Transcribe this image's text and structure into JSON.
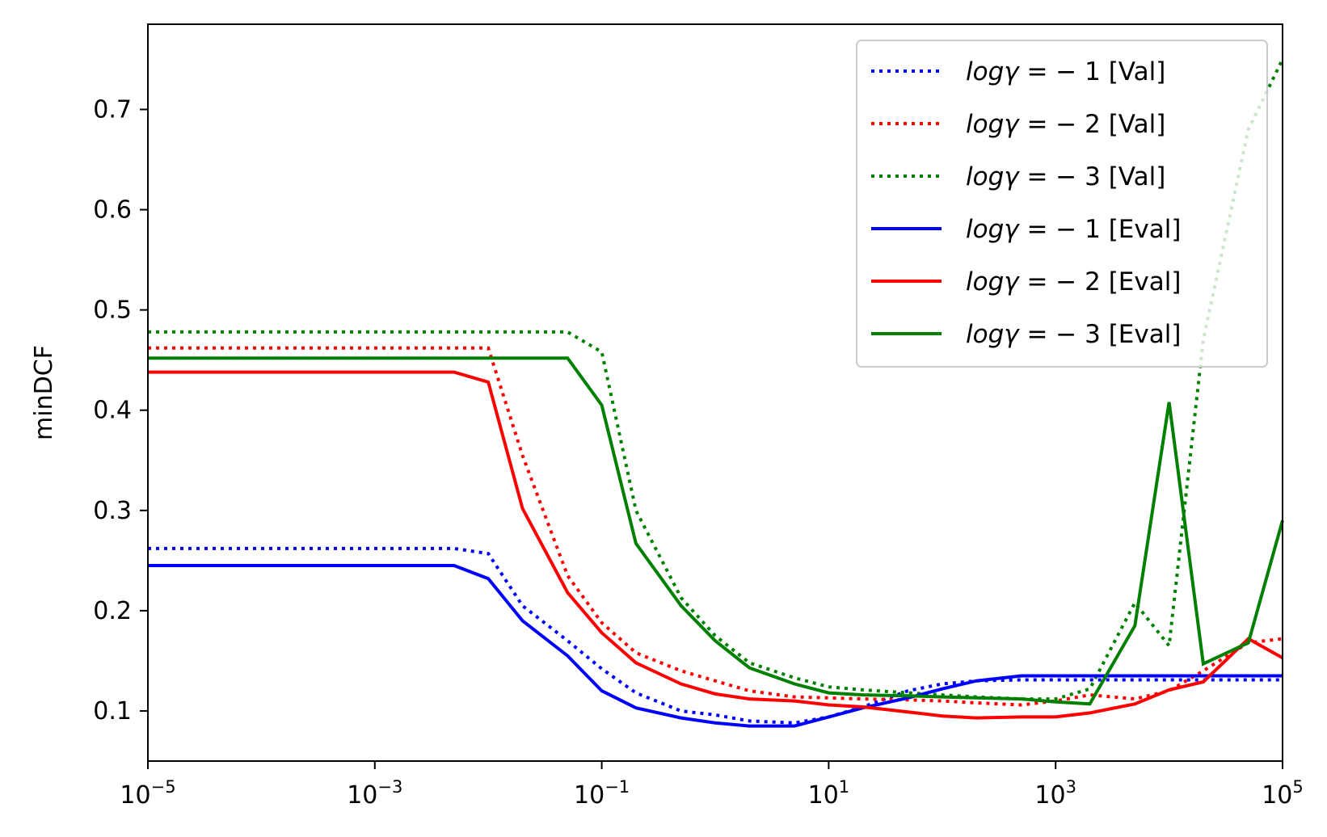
{
  "chart_data": {
    "type": "line",
    "title": "",
    "xlabel": "",
    "ylabel": "minDCF",
    "xscale": "log",
    "xlim_exponent": [
      -5,
      5
    ],
    "ylim": [
      0.05,
      0.785
    ],
    "x_tick_base": "10",
    "x_tick_exponents": [
      "−5",
      "−3",
      "−1",
      "1",
      "3",
      "5"
    ],
    "y_ticks": [
      0.1,
      0.2,
      0.3,
      0.4,
      0.5,
      0.6,
      0.7
    ],
    "y_tick_labels": [
      "0.1",
      "0.2",
      "0.3",
      "0.4",
      "0.5",
      "0.6",
      "0.7"
    ],
    "grid": false,
    "legend_position": "top-right",
    "x_exponents": [
      -5,
      -4.301,
      -4,
      -3.301,
      -3,
      -2.301,
      -2,
      -1.699,
      -1.301,
      -1,
      -0.699,
      -0.301,
      0,
      0.301,
      0.699,
      1,
      1.301,
      1.699,
      2,
      2.301,
      2.699,
      3,
      3.301,
      3.699,
      4,
      4.301,
      4.699,
      5
    ],
    "series": [
      {
        "label_prefix": "logγ",
        "label_suffix": " = − 1 [Val]",
        "color": "#0000ff",
        "style": "dotted",
        "values": [
          0.262,
          0.262,
          0.262,
          0.262,
          0.262,
          0.262,
          0.257,
          0.205,
          0.17,
          0.142,
          0.118,
          0.1,
          0.096,
          0.09,
          0.088,
          0.094,
          0.104,
          0.12,
          0.127,
          0.13,
          0.131,
          0.131,
          0.131,
          0.131,
          0.131,
          0.131,
          0.131,
          0.131
        ]
      },
      {
        "label_prefix": "logγ",
        "label_suffix": " = − 2 [Val]",
        "color": "#ff0000",
        "style": "dotted",
        "values": [
          0.462,
          0.462,
          0.462,
          0.462,
          0.462,
          0.462,
          0.462,
          0.355,
          0.235,
          0.188,
          0.158,
          0.14,
          0.13,
          0.12,
          0.114,
          0.113,
          0.112,
          0.111,
          0.11,
          0.108,
          0.106,
          0.11,
          0.116,
          0.112,
          0.12,
          0.14,
          0.168,
          0.172
        ]
      },
      {
        "label_prefix": "logγ",
        "label_suffix": " = − 3 [Val]",
        "color": "#008000",
        "style": "dotted",
        "values": [
          0.478,
          0.478,
          0.478,
          0.478,
          0.478,
          0.478,
          0.478,
          0.478,
          0.478,
          0.458,
          0.3,
          0.213,
          0.175,
          0.148,
          0.133,
          0.124,
          0.121,
          0.118,
          0.116,
          0.114,
          0.112,
          0.112,
          0.122,
          0.208,
          0.165,
          0.47,
          0.68,
          0.75
        ]
      },
      {
        "label_prefix": "logγ",
        "label_suffix": " = − 1 [Eval]",
        "color": "#0000ff",
        "style": "solid",
        "values": [
          0.245,
          0.245,
          0.245,
          0.245,
          0.245,
          0.245,
          0.232,
          0.19,
          0.155,
          0.12,
          0.103,
          0.093,
          0.088,
          0.085,
          0.085,
          0.094,
          0.103,
          0.113,
          0.122,
          0.13,
          0.135,
          0.135,
          0.135,
          0.135,
          0.135,
          0.135,
          0.135,
          0.135
        ]
      },
      {
        "label_prefix": "logγ",
        "label_suffix": " = − 2 [Eval]",
        "color": "#ff0000",
        "style": "solid",
        "values": [
          0.438,
          0.438,
          0.438,
          0.438,
          0.438,
          0.438,
          0.428,
          0.302,
          0.218,
          0.178,
          0.148,
          0.127,
          0.117,
          0.112,
          0.11,
          0.106,
          0.104,
          0.099,
          0.095,
          0.093,
          0.094,
          0.094,
          0.098,
          0.107,
          0.121,
          0.129,
          0.172,
          0.153
        ]
      },
      {
        "label_prefix": "logγ",
        "label_suffix": " = − 3 [Eval]",
        "color": "#008000",
        "style": "solid",
        "values": [
          0.452,
          0.452,
          0.452,
          0.452,
          0.452,
          0.452,
          0.452,
          0.452,
          0.452,
          0.405,
          0.267,
          0.205,
          0.17,
          0.143,
          0.127,
          0.118,
          0.116,
          0.115,
          0.114,
          0.113,
          0.112,
          0.109,
          0.107,
          0.185,
          0.408,
          0.147,
          0.168,
          0.29
        ]
      }
    ]
  }
}
